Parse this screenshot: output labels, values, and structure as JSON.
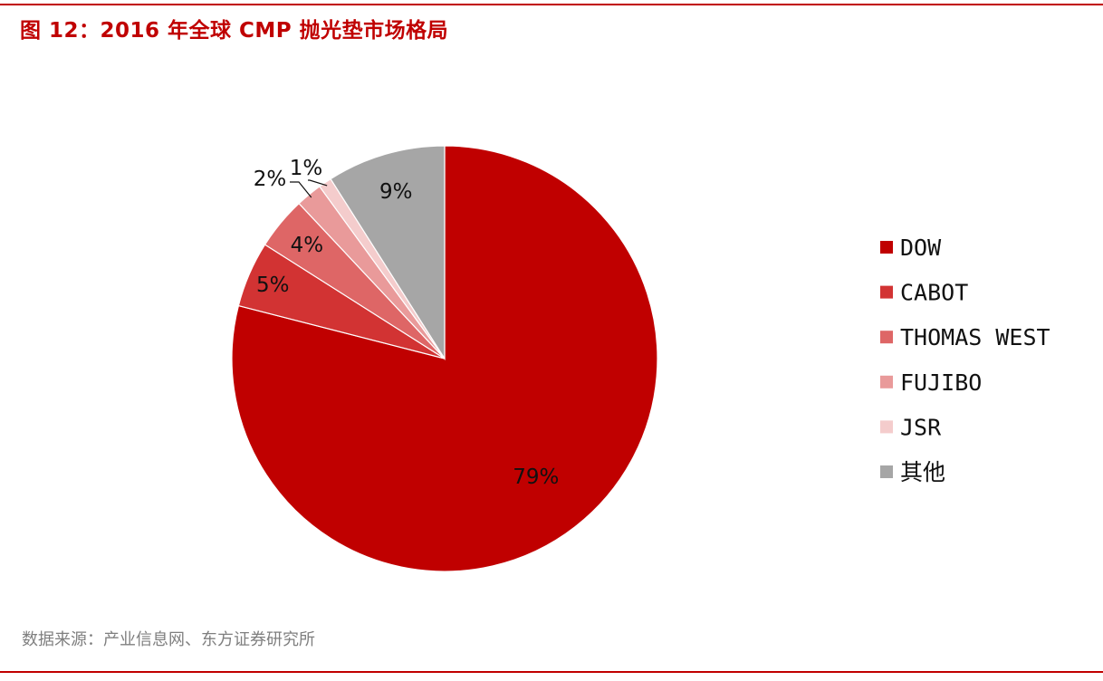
{
  "title": "图 12：2016 年全球 CMP 抛光垫市场格局",
  "source": "数据来源：产业信息网、东方证券研究所",
  "chart_data": {
    "type": "pie",
    "title": "图 12：2016 年全球 CMP 抛光垫市场格局",
    "categories": [
      "DOW",
      "CABOT",
      "THOMAS WEST",
      "FUJIBO",
      "JSR",
      "其他"
    ],
    "values": [
      79,
      5,
      4,
      2,
      1,
      9
    ],
    "data_labels": [
      "79%",
      "5%",
      "4%",
      "2%",
      "1%",
      "9%"
    ],
    "colors": [
      "#c00000",
      "#d23333",
      "#de6666",
      "#e99a9a",
      "#f4cccc",
      "#a6a6a6"
    ],
    "legend_position": "right",
    "start_angle": "12 o'clock",
    "direction": "clockwise"
  }
}
